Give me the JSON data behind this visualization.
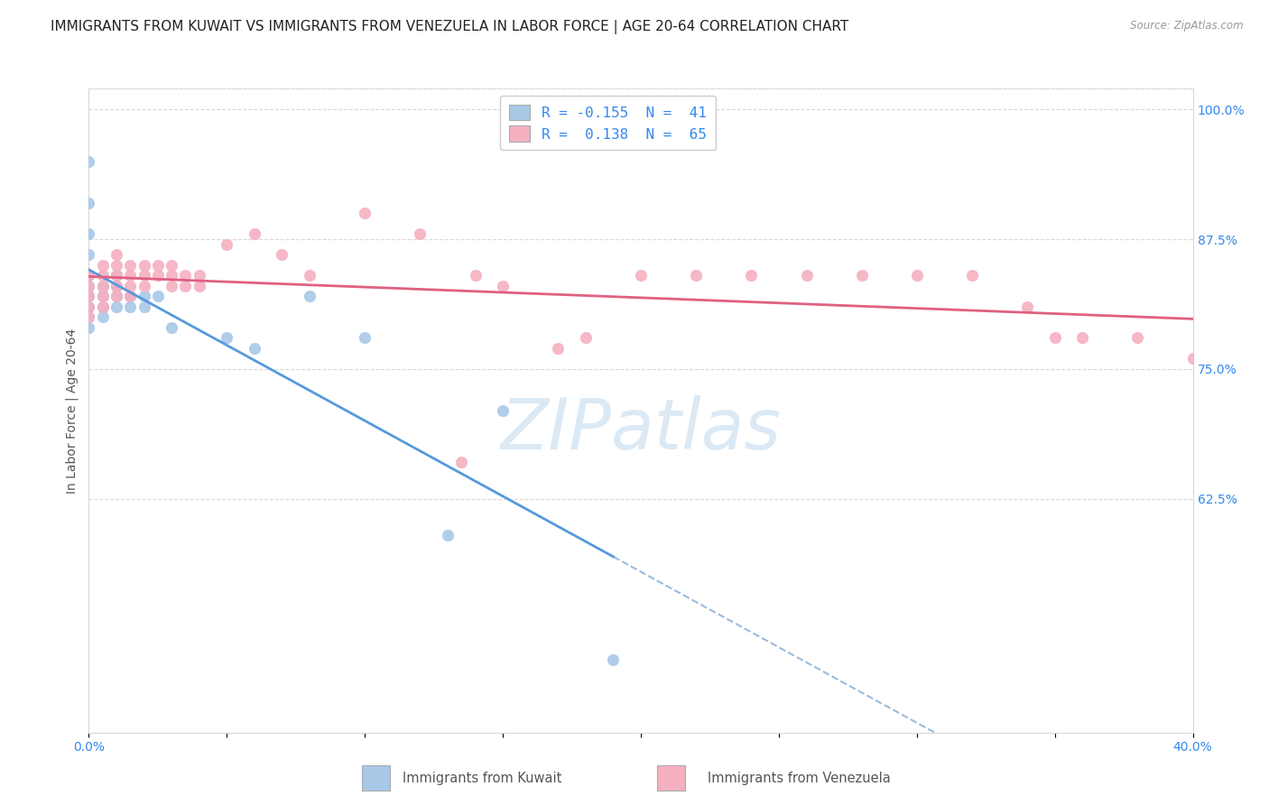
{
  "title": "IMMIGRANTS FROM KUWAIT VS IMMIGRANTS FROM VENEZUELA IN LABOR FORCE | AGE 20-64 CORRELATION CHART",
  "source": "Source: ZipAtlas.com",
  "ylabel": "In Labor Force | Age 20-64",
  "xlim": [
    0.0,
    0.4
  ],
  "ylim": [
    0.4,
    1.02
  ],
  "ytick_positions": [
    0.625,
    0.75,
    0.875,
    1.0
  ],
  "ytick_labels": [
    "62.5%",
    "75.0%",
    "87.5%",
    "100.0%"
  ],
  "xtick_positions": [
    0.0,
    0.05,
    0.1,
    0.15,
    0.2,
    0.25,
    0.3,
    0.35,
    0.4
  ],
  "xtick_labels": [
    "0.0%",
    "",
    "",
    "",
    "",
    "",
    "",
    "",
    "40.0%"
  ],
  "watermark": "ZIPatlas",
  "kuwait_color": "#a8c8e8",
  "venezuela_color": "#f5b0c0",
  "kuwait_line_color": "#5599dd",
  "venezuela_line_color": "#e06080",
  "dashed_line_color": "#99bbdd",
  "R_kuwait": -0.155,
  "N_kuwait": 41,
  "R_venezuela": 0.138,
  "N_venezuela": 65,
  "kuwait_x": [
    0.0,
    0.0,
    0.0,
    0.0,
    0.0,
    0.0,
    0.0,
    0.0,
    0.0,
    0.0,
    0.005,
    0.005,
    0.005,
    0.005,
    0.01,
    0.01,
    0.01,
    0.01,
    0.015,
    0.015,
    0.02,
    0.02,
    0.025,
    0.03,
    0.05,
    0.06,
    0.08,
    0.1,
    0.13,
    0.15,
    0.19
  ],
  "kuwait_y": [
    0.95,
    0.91,
    0.88,
    0.86,
    0.84,
    0.83,
    0.82,
    0.81,
    0.8,
    0.79,
    0.83,
    0.82,
    0.81,
    0.8,
    0.84,
    0.83,
    0.82,
    0.81,
    0.82,
    0.81,
    0.82,
    0.81,
    0.82,
    0.79,
    0.78,
    0.77,
    0.82,
    0.78,
    0.59,
    0.71,
    0.47
  ],
  "venezuela_x": [
    0.0,
    0.0,
    0.0,
    0.0,
    0.0,
    0.005,
    0.005,
    0.005,
    0.005,
    0.005,
    0.01,
    0.01,
    0.01,
    0.01,
    0.01,
    0.015,
    0.015,
    0.015,
    0.015,
    0.02,
    0.02,
    0.02,
    0.025,
    0.025,
    0.03,
    0.03,
    0.03,
    0.035,
    0.035,
    0.04,
    0.04,
    0.05,
    0.06,
    0.07,
    0.08,
    0.1,
    0.12,
    0.14,
    0.15,
    0.17,
    0.18,
    0.2,
    0.22,
    0.24,
    0.26,
    0.28,
    0.3,
    0.32,
    0.34,
    0.35,
    0.36,
    0.38,
    0.4,
    0.135
  ],
  "venezuela_y": [
    0.84,
    0.83,
    0.82,
    0.81,
    0.8,
    0.85,
    0.84,
    0.83,
    0.82,
    0.81,
    0.86,
    0.85,
    0.84,
    0.83,
    0.82,
    0.85,
    0.84,
    0.83,
    0.82,
    0.85,
    0.84,
    0.83,
    0.85,
    0.84,
    0.85,
    0.84,
    0.83,
    0.84,
    0.83,
    0.84,
    0.83,
    0.87,
    0.88,
    0.86,
    0.84,
    0.9,
    0.88,
    0.84,
    0.83,
    0.77,
    0.78,
    0.84,
    0.84,
    0.84,
    0.84,
    0.84,
    0.84,
    0.84,
    0.81,
    0.78,
    0.78,
    0.78,
    0.76,
    0.66
  ],
  "background_color": "#ffffff",
  "grid_color": "#d8d8d8",
  "title_fontsize": 11,
  "axis_label_fontsize": 10,
  "tick_fontsize": 10,
  "legend_label_kuwait": "R = -0.155  N =  41",
  "legend_label_venezuela": "R =  0.138  N =  65"
}
